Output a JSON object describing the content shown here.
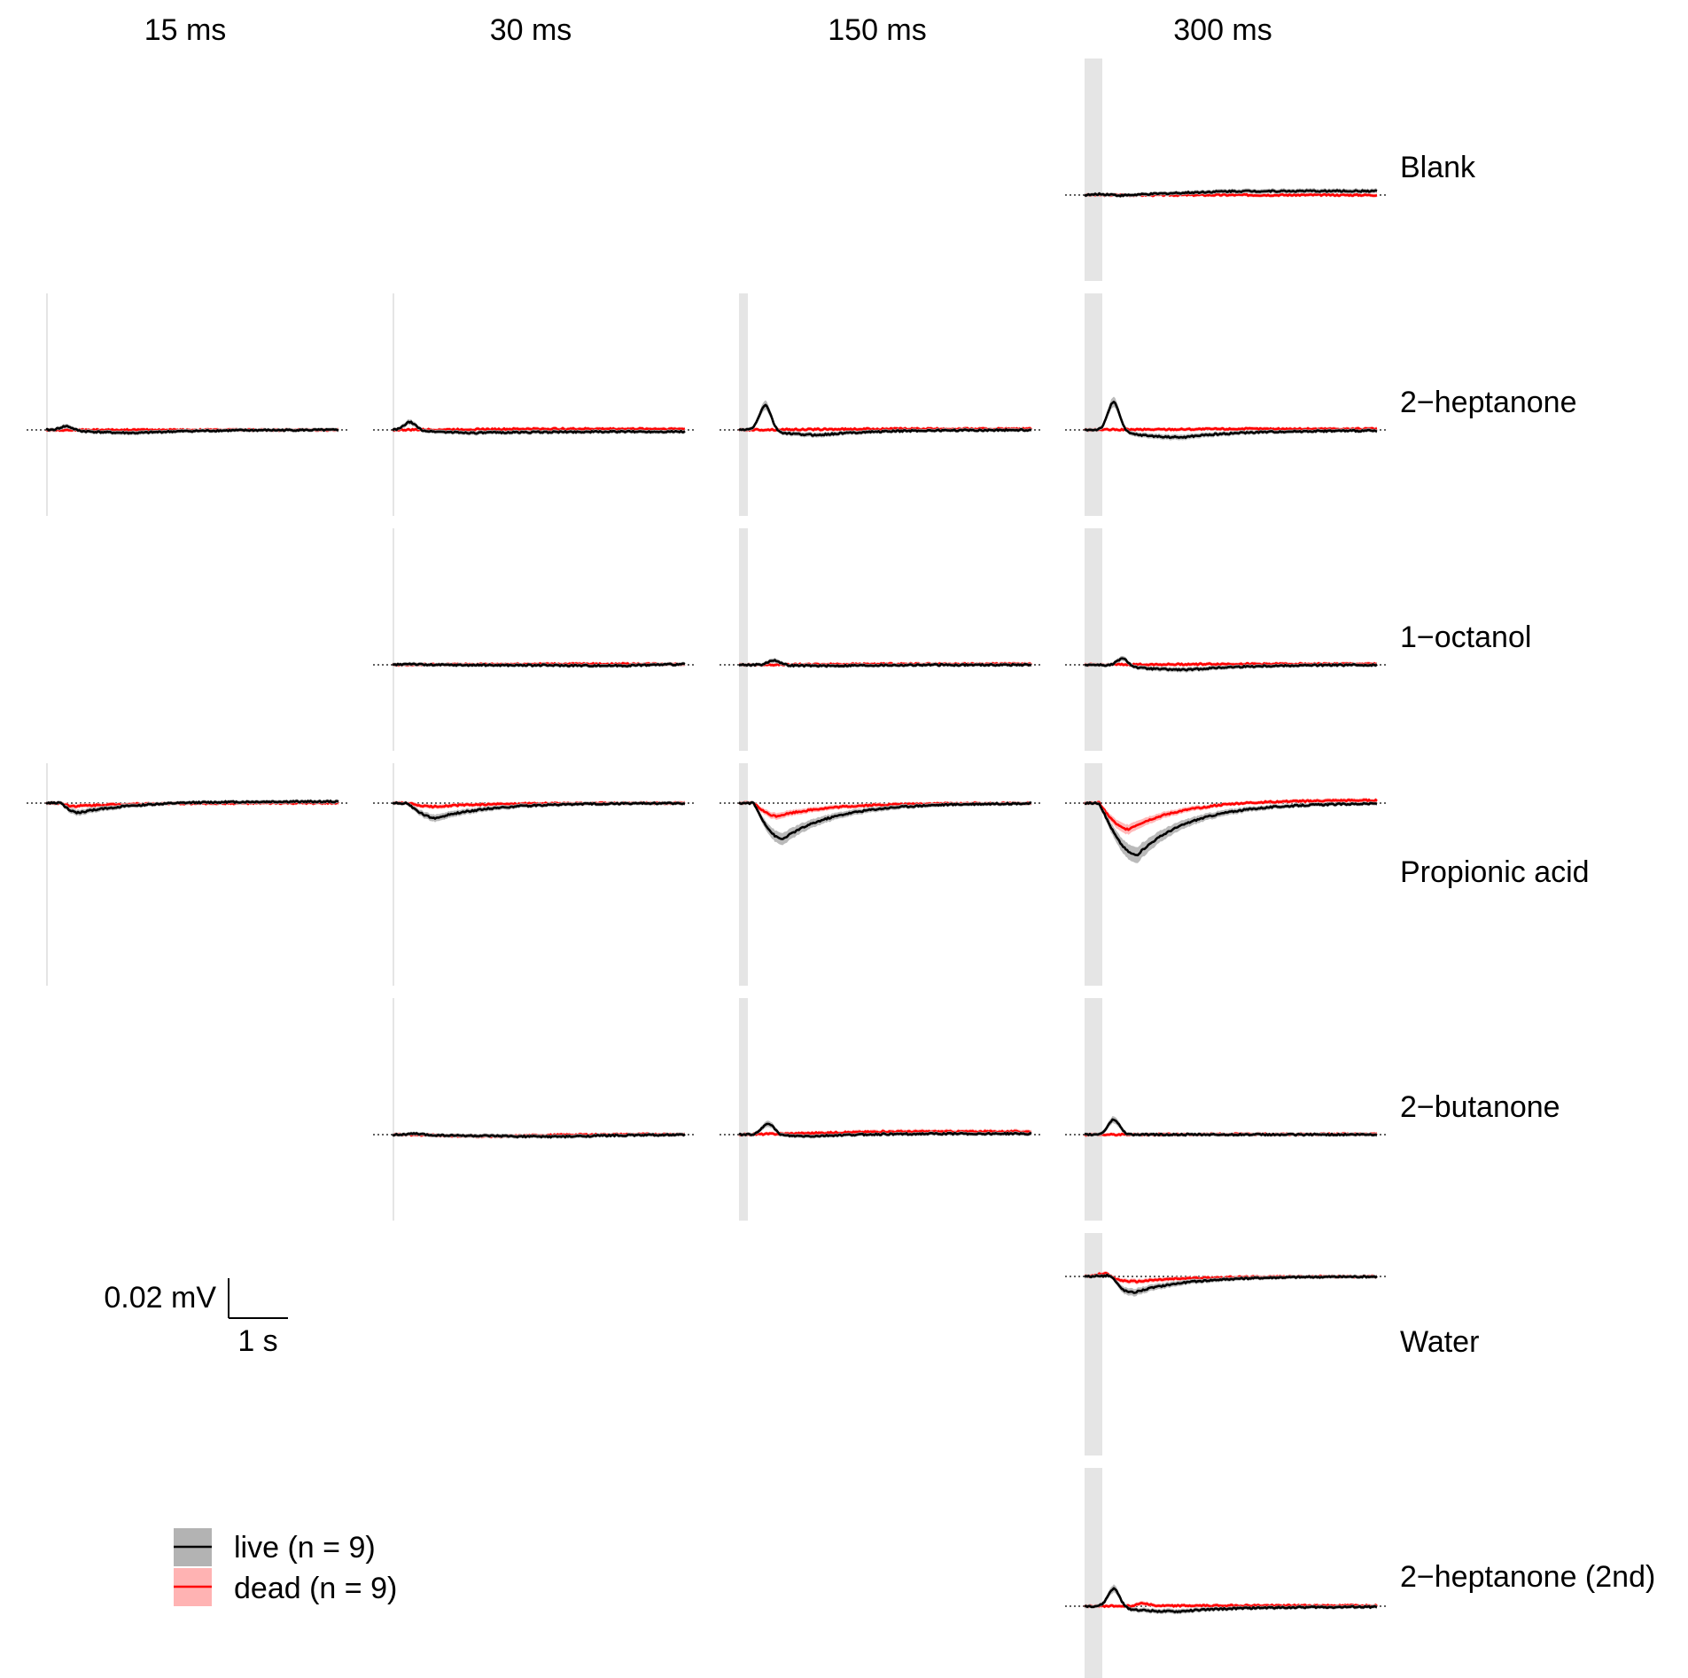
{
  "chart_data": {
    "type": "line",
    "columns": [
      "15 ms",
      "30 ms",
      "150 ms",
      "300 ms"
    ],
    "rows": [
      "Blank",
      "2−heptanone",
      "1−octanol",
      "Propionic acid",
      "2−butanone",
      "Water",
      "2−heptanone (2nd)"
    ],
    "scale_bar": {
      "voltage_label": "0.02 mV",
      "time_label": "1 s",
      "voltage_mV": 0.02,
      "time_s": 1
    },
    "legend": [
      {
        "label": "live (n = 9)",
        "color": "#000000",
        "band_color": "#b3b3b3"
      },
      {
        "label": "dead (n = 9)",
        "color": "#ff0000",
        "band_color": "#ffb3b3"
      }
    ],
    "stimulus_band_color": "#e5e5e5",
    "time_window_s": [
      0,
      5
    ],
    "panels": [
      {
        "row": "Blank",
        "col": "300 ms",
        "live": {
          "peak_mV": 0.001,
          "peak_t": 0.4,
          "trough_mV": -0.001,
          "trough_t": 0.4,
          "late_mV": 0.002
        },
        "dead": {
          "peak_mV": 0.0,
          "trough_mV": -0.0005,
          "late_mV": 0.0
        }
      },
      {
        "row": "2−heptanone",
        "col": "15 ms",
        "live": {
          "peak_mV": 0.002,
          "peak_t": 0.35,
          "trough_mV": -0.0015,
          "trough_t": 1.6,
          "late_mV": 0.0
        },
        "dead": {
          "peak_mV": 0.0,
          "trough_mV": 0.0,
          "late_mV": 0.0
        }
      },
      {
        "row": "2−heptanone",
        "col": "30 ms",
        "live": {
          "peak_mV": 0.004,
          "peak_t": 0.3,
          "trough_mV": -0.001,
          "trough_t": 1.5,
          "late_mV": -0.0008
        },
        "dead": {
          "peak_mV": 0.0,
          "trough_mV": 0.0,
          "late_mV": 0.0005
        }
      },
      {
        "row": "2−heptanone",
        "col": "150 ms",
        "live": {
          "peak_mV": 0.013,
          "peak_t": 0.45,
          "trough_mV": -0.0025,
          "trough_t": 1.4,
          "late_mV": 0.0
        },
        "dead": {
          "peak_mV": 0.0,
          "trough_mV": -0.0002,
          "late_mV": 0.0005
        }
      },
      {
        "row": "2−heptanone",
        "col": "300 ms",
        "live": {
          "peak_mV": 0.015,
          "peak_t": 0.5,
          "trough_mV": -0.0035,
          "trough_t": 1.7,
          "late_mV": -0.0003
        },
        "dead": {
          "peak_mV": 0.0,
          "trough_mV": 0.0,
          "late_mV": 0.0005
        }
      },
      {
        "row": "1−octanol",
        "col": "30 ms",
        "live": {
          "peak_mV": 0.0005,
          "peak_t": 0.3,
          "trough_mV": -0.001,
          "trough_t": 4.0,
          "late_mV": 0.0006
        },
        "dead": {
          "peak_mV": 0.0,
          "trough_mV": 0.0,
          "late_mV": 0.0004
        }
      },
      {
        "row": "1−octanol",
        "col": "150 ms",
        "live": {
          "peak_mV": 0.0025,
          "peak_t": 0.6,
          "trough_mV": -0.0005,
          "trough_t": 1.6,
          "late_mV": 0.0
        },
        "dead": {
          "peak_mV": 0.0,
          "trough_mV": -0.0003,
          "late_mV": 0.0004
        }
      },
      {
        "row": "1−octanol",
        "col": "300 ms",
        "live": {
          "peak_mV": 0.004,
          "peak_t": 0.65,
          "trough_mV": -0.0025,
          "trough_t": 1.8,
          "late_mV": 0.0
        },
        "dead": {
          "peak_mV": 0.0,
          "trough_mV": 0.0,
          "late_mV": 0.0004
        }
      },
      {
        "row": "Propionic acid",
        "col": "15 ms",
        "live": {
          "peak_mV": 0.0,
          "peak_t": 0.3,
          "trough_mV": -0.005,
          "trough_t": 0.55,
          "late_mV": 0.0008
        },
        "dead": {
          "peak_mV": 0.0,
          "trough_mV": -0.0015,
          "trough_t": 0.5,
          "late_mV": 0.0
        }
      },
      {
        "row": "Propionic acid",
        "col": "30 ms",
        "live": {
          "peak_mV": 0.0,
          "peak_t": 0.3,
          "trough_mV": -0.0075,
          "trough_t": 0.75,
          "late_mV": 0.0
        },
        "dead": {
          "peak_mV": 0.0,
          "trough_mV": -0.0018,
          "trough_t": 0.7,
          "late_mV": 0.0
        }
      },
      {
        "row": "Propionic acid",
        "col": "150 ms",
        "live": {
          "peak_mV": 0.0,
          "peak_t": 0.3,
          "trough_mV": -0.018,
          "trough_t": 0.75,
          "late_mV": 0.0
        },
        "dead": {
          "peak_mV": 0.0,
          "trough_mV": -0.0065,
          "trough_t": 0.65,
          "late_mV": 0.0
        }
      },
      {
        "row": "Propionic acid",
        "col": "300 ms",
        "live": {
          "peak_mV": 0.0,
          "peak_t": 0.3,
          "trough_mV": -0.026,
          "trough_t": 0.9,
          "late_mV": 0.0
        },
        "dead": {
          "peak_mV": 0.0,
          "trough_mV": -0.0135,
          "trough_t": 0.75,
          "late_mV": 0.0015
        }
      },
      {
        "row": "2−butanone",
        "col": "30 ms",
        "live": {
          "peak_mV": 0.0005,
          "peak_t": 0.4,
          "trough_mV": -0.001,
          "trough_t": 3.0,
          "late_mV": 0.0
        },
        "dead": {
          "peak_mV": 0.0,
          "trough_mV": -0.001,
          "trough_t": 2.0,
          "late_mV": 0.0002
        }
      },
      {
        "row": "2−butanone",
        "col": "150 ms",
        "live": {
          "peak_mV": 0.006,
          "peak_t": 0.5,
          "trough_mV": -0.001,
          "trough_t": 1.3,
          "late_mV": 0.0005
        },
        "dead": {
          "peak_mV": 0.0,
          "trough_mV": 0.0,
          "late_mV": 0.0015
        }
      },
      {
        "row": "2−butanone",
        "col": "300 ms",
        "live": {
          "peak_mV": 0.0075,
          "peak_t": 0.5,
          "trough_mV": 0.0,
          "trough_t": 1.2,
          "late_mV": 0.0
        },
        "dead": {
          "peak_mV": 0.0,
          "trough_mV": 0.0,
          "late_mV": 0.0002
        }
      },
      {
        "row": "Water",
        "col": "300 ms",
        "live": {
          "peak_mV": 0.004,
          "peak_t": 0.45,
          "trough_mV": -0.008,
          "trough_t": 0.85,
          "late_mV": 0.0
        },
        "dead": {
          "peak_mV": 0.002,
          "peak_t": 0.35,
          "trough_mV": -0.0025,
          "trough_t": 0.9,
          "late_mV": 0.0
        }
      },
      {
        "row": "2−heptanone (2nd)",
        "col": "300 ms",
        "live": {
          "peak_mV": 0.0095,
          "peak_t": 0.5,
          "trough_mV": -0.0025,
          "trough_t": 1.6,
          "late_mV": -0.0003
        },
        "dead": {
          "peak_mV": 0.0015,
          "peak_t": 1.0,
          "trough_mV": 0.0,
          "late_mV": 0.0003
        }
      }
    ]
  }
}
